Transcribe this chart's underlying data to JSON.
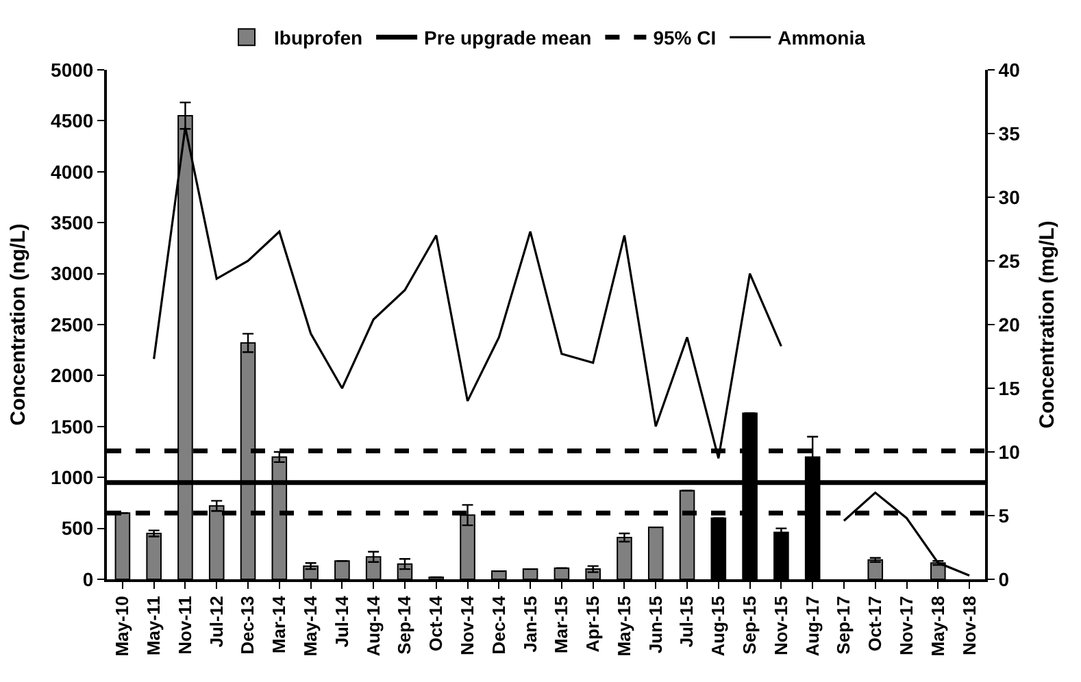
{
  "chart_data": {
    "type": "bar",
    "ylabel": "Concentration (ng/L)",
    "y2label": "Concentration (mg/L)",
    "categories": [
      "May-10",
      "May-11",
      "Nov-11",
      "Jul-12",
      "Dec-13",
      "Mar-14",
      "May-14",
      "Jul-14",
      "Aug-14",
      "Sep-14",
      "Oct-14",
      "Nov-14",
      "Dec-14",
      "Jan-15",
      "Mar-15",
      "Apr-15",
      "May-15",
      "Jun-15",
      "Jul-15",
      "Aug-15",
      "Sep-15",
      "Nov-15",
      "Aug-17",
      "Sep-17",
      "Oct-17",
      "Nov-17",
      "May-18",
      "Nov-18"
    ],
    "series": [
      {
        "name": "Ibuprofen",
        "colors": [
          "#808080",
          "#808080",
          "#808080",
          "#808080",
          "#808080",
          "#808080",
          "#808080",
          "#808080",
          "#808080",
          "#808080",
          "#808080",
          "#808080",
          "#808080",
          "#808080",
          "#808080",
          "#808080",
          "#808080",
          "#808080",
          "#808080",
          "#000000",
          "#000000",
          "#000000",
          "#000000",
          "#808080",
          "#808080",
          "#808080",
          "#808080",
          "#808080"
        ],
        "values": [
          650,
          450,
          4550,
          720,
          2320,
          1200,
          130,
          180,
          220,
          150,
          20,
          630,
          80,
          100,
          110,
          100,
          410,
          510,
          870,
          600,
          1630,
          460,
          1200,
          null,
          190,
          null,
          160,
          null
        ],
        "errors": [
          null,
          30,
          130,
          50,
          90,
          50,
          30,
          null,
          50,
          50,
          null,
          100,
          null,
          null,
          null,
          30,
          40,
          null,
          null,
          null,
          null,
          40,
          200,
          null,
          20,
          null,
          20,
          null
        ]
      },
      {
        "name": "Ammonia",
        "type": "line",
        "axis": "y2",
        "color": "#000000",
        "values": [
          null,
          17.3,
          35.5,
          23.6,
          25,
          27.3,
          19.3,
          15,
          20.4,
          22.7,
          27,
          14,
          19,
          27.3,
          17.7,
          17,
          27,
          12,
          19,
          9.5,
          24,
          18.3,
          null,
          4.6,
          6.8,
          4.8,
          1.3,
          0.3
        ]
      }
    ],
    "ref_lines": [
      {
        "axis": "y",
        "value": 950,
        "label": "Pre upgrade mean",
        "color": "#000000",
        "line_style": "solid"
      },
      {
        "axis": "y",
        "value": 1260,
        "label": "95% CI",
        "color": "#000000",
        "line_style": "dashed"
      },
      {
        "axis": "y",
        "value": 650,
        "color": "#000000",
        "line_style": "dashed"
      }
    ],
    "ylim": [
      0,
      5000
    ],
    "yticks": [
      0,
      500,
      1000,
      1500,
      2000,
      2500,
      3000,
      3500,
      4000,
      4500,
      5000
    ],
    "y2lim": [
      0,
      40
    ],
    "y2ticks": [
      0,
      5,
      10,
      15,
      20,
      25,
      30,
      35,
      40
    ],
    "legend": "top"
  }
}
